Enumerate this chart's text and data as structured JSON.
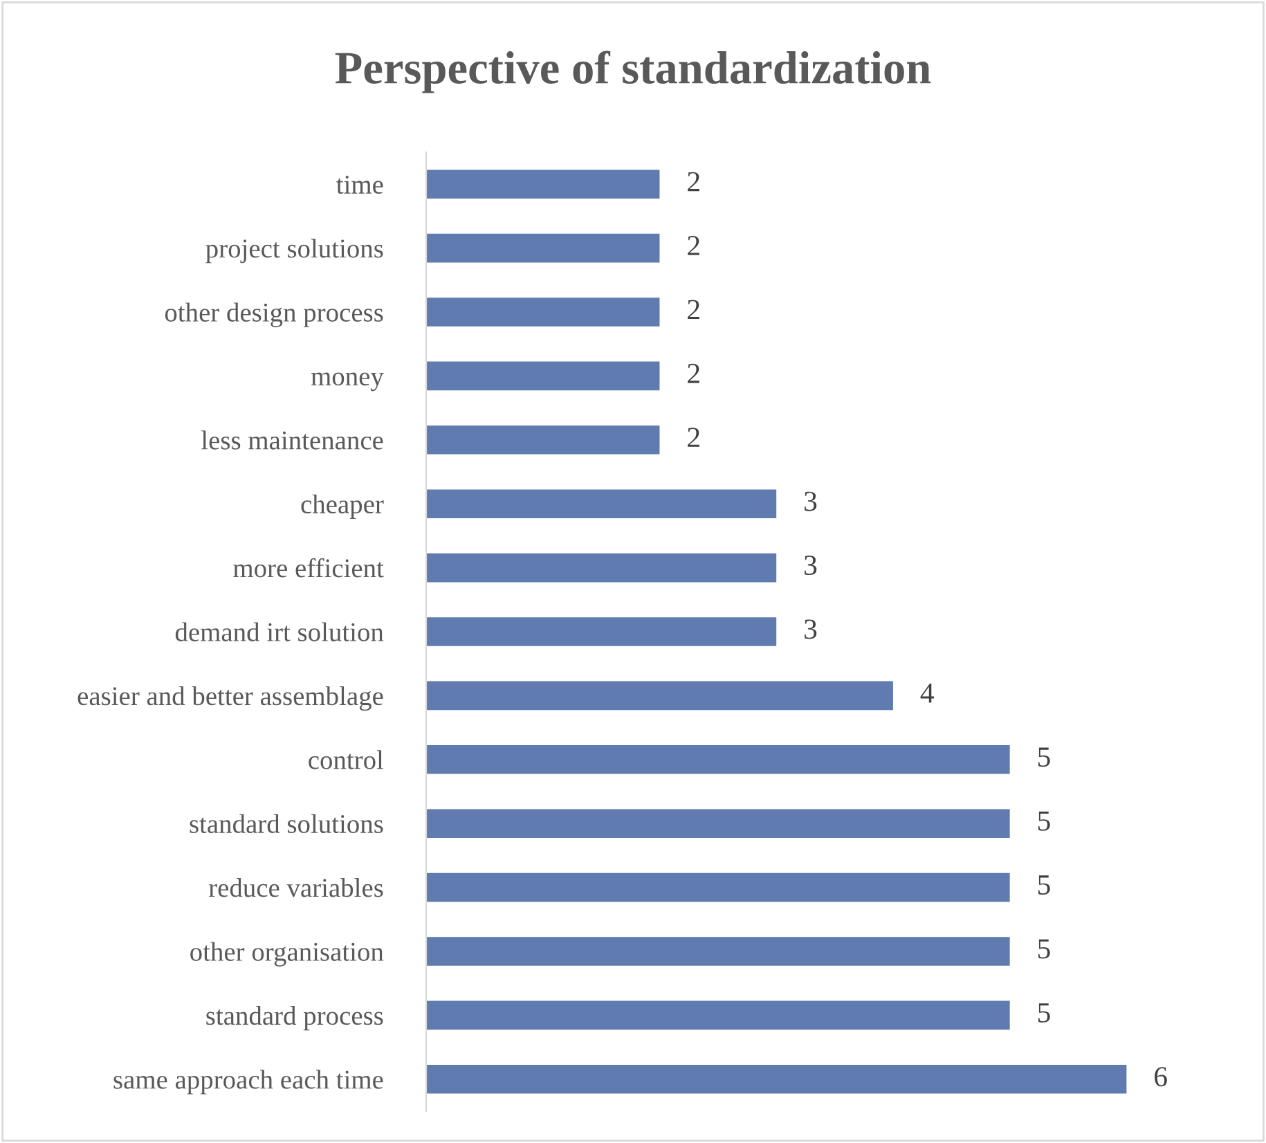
{
  "chart_data": {
    "type": "bar",
    "orientation": "horizontal",
    "title": "Perspective of standardization",
    "categories": [
      "time",
      "project solutions",
      "other design process",
      "money",
      "less maintenance",
      "cheaper",
      "more efficient",
      "demand irt solution",
      "easier and better assemblage",
      "control",
      "standard solutions",
      "reduce variables",
      "other organisation",
      "standard process",
      "same approach each time"
    ],
    "values": [
      2,
      2,
      2,
      2,
      2,
      3,
      3,
      3,
      4,
      5,
      5,
      5,
      5,
      5,
      6
    ],
    "color": "#5f7bb0",
    "data_labels": true,
    "grid": false,
    "legend": false
  }
}
